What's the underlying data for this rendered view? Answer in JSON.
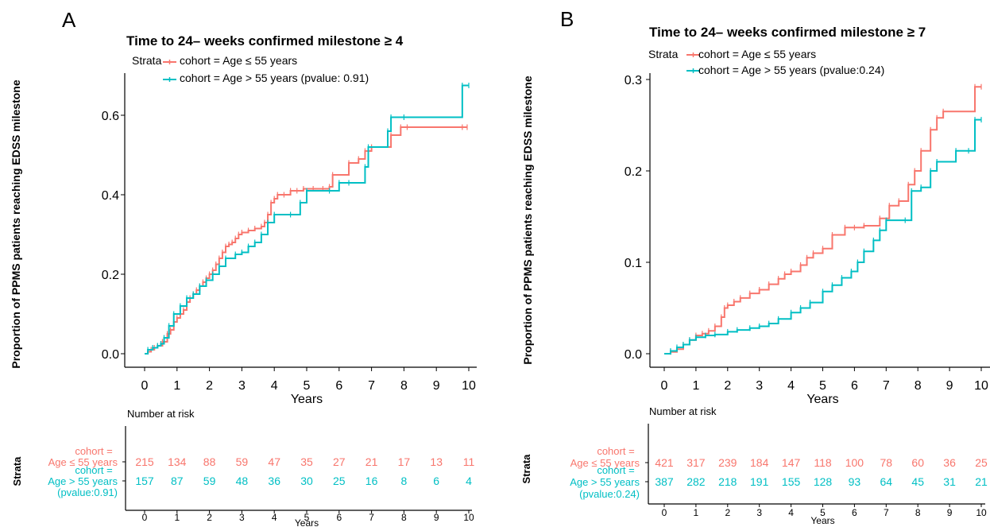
{
  "colors": {
    "age_le_55": "#F8766D",
    "age_gt_55": "#00BFC4"
  },
  "panels": [
    {
      "letter": "A",
      "title": "Time to 24– weeks confirmed milestone ≥ 4",
      "legend": {
        "strata_label": "Strata",
        "entries": [
          "cohort = Age ≤ 55 years",
          "cohort = Age > 55 years (pvalue: 0.91)"
        ]
      },
      "ylabel": "Proportion of PPMS patients reaching EDSS milestone",
      "xlabel": "Years",
      "y_ticks": [
        "0.0",
        "0.2",
        "0.4",
        "0.6"
      ],
      "x_ticks": [
        "0",
        "1",
        "2",
        "3",
        "4",
        "5",
        "6",
        "7",
        "8",
        "9",
        "10"
      ],
      "risk_table": {
        "title": "Number at risk",
        "strata_title": "Strata",
        "xlabel": "Years",
        "x_ticks": [
          "0",
          "1",
          "2",
          "3",
          "4",
          "5",
          "6",
          "7",
          "8",
          "9",
          "10"
        ],
        "rows": [
          {
            "label_lines": [
              "cohort =",
              "Age ≤ 55 years"
            ],
            "values": [
              "215",
              "134",
              "88",
              "59",
              "47",
              "35",
              "27",
              "21",
              "17",
              "13",
              "11"
            ]
          },
          {
            "label_lines": [
              "cohort =",
              "Age > 55 years",
              "(pvalue:0.91)"
            ],
            "values": [
              "157",
              "87",
              "59",
              "48",
              "36",
              "30",
              "25",
              "16",
              "8",
              "6",
              "4"
            ]
          }
        ]
      }
    },
    {
      "letter": "B",
      "title": "Time to 24– weeks confirmed milestone ≥ 7",
      "legend": {
        "strata_label": "Strata",
        "entries": [
          "cohort = Age ≤ 55 years",
          "cohort = Age > 55 years (pvalue:0.24)"
        ]
      },
      "ylabel": "Proportion of PPMS patients reaching EDSS milestone",
      "xlabel": "Years",
      "y_ticks": [
        "0.0",
        "0.1",
        "0.2",
        "0.3"
      ],
      "x_ticks": [
        "0",
        "1",
        "2",
        "3",
        "4",
        "5",
        "6",
        "7",
        "8",
        "9",
        "10"
      ],
      "risk_table": {
        "title": "Number at risk",
        "strata_title": "Strata",
        "xlabel": "Years",
        "x_ticks": [
          "0",
          "1",
          "2",
          "3",
          "4",
          "5",
          "6",
          "7",
          "8",
          "9",
          "10"
        ],
        "rows": [
          {
            "label_lines": [
              "cohort =",
              "Age ≤ 55 years"
            ],
            "values": [
              "421",
              "317",
              "239",
              "184",
              "147",
              "118",
              "100",
              "78",
              "60",
              "36",
              "25"
            ]
          },
          {
            "label_lines": [
              "cohort =",
              "Age > 55 years",
              "(pvalue:0.24)"
            ],
            "values": [
              "387",
              "282",
              "218",
              "191",
              "155",
              "128",
              "93",
              "64",
              "45",
              "31",
              "21"
            ]
          }
        ]
      }
    }
  ],
  "chart_data": [
    {
      "type": "line",
      "step": true,
      "title": "Time to 24– weeks confirmed milestone ≥ 4",
      "xlabel": "Years",
      "ylabel": "Proportion of PPMS patients reaching EDSS milestone",
      "xlim": [
        0,
        10
      ],
      "ylim": [
        0,
        0.68
      ],
      "legend_position": "top-left",
      "series": [
        {
          "name": "cohort = Age ≤ 55 years",
          "x": [
            0,
            0.1,
            0.2,
            0.3,
            0.4,
            0.55,
            0.7,
            0.8,
            0.9,
            1.0,
            1.1,
            1.2,
            1.3,
            1.4,
            1.5,
            1.6,
            1.7,
            1.8,
            1.9,
            2.0,
            2.1,
            2.2,
            2.3,
            2.4,
            2.5,
            2.6,
            2.7,
            2.8,
            2.9,
            3.0,
            3.2,
            3.4,
            3.6,
            3.7,
            3.8,
            3.9,
            4.0,
            4.1,
            4.3,
            4.5,
            4.7,
            4.9,
            5.2,
            5.5,
            5.7,
            5.8,
            6.3,
            6.6,
            6.8,
            7.0,
            7.6,
            7.9,
            8.1,
            9.8,
            9.95
          ],
          "y": [
            0,
            0.005,
            0.01,
            0.015,
            0.02,
            0.03,
            0.05,
            0.06,
            0.08,
            0.09,
            0.1,
            0.11,
            0.13,
            0.14,
            0.15,
            0.16,
            0.17,
            0.18,
            0.19,
            0.2,
            0.21,
            0.225,
            0.24,
            0.255,
            0.27,
            0.275,
            0.28,
            0.29,
            0.3,
            0.305,
            0.31,
            0.315,
            0.32,
            0.33,
            0.35,
            0.38,
            0.39,
            0.4,
            0.4,
            0.41,
            0.41,
            0.415,
            0.415,
            0.415,
            0.42,
            0.45,
            0.48,
            0.49,
            0.51,
            0.52,
            0.55,
            0.57,
            0.57,
            0.57,
            0.57
          ]
        },
        {
          "name": "cohort = Age > 55 years (pvalue: 0.91)",
          "x": [
            0,
            0.1,
            0.25,
            0.4,
            0.5,
            0.6,
            0.75,
            0.9,
            1.1,
            1.3,
            1.5,
            1.7,
            1.9,
            2.1,
            2.3,
            2.5,
            2.8,
            3.0,
            3.2,
            3.4,
            3.6,
            3.8,
            4.0,
            4.5,
            4.8,
            5.0,
            5.7,
            6.0,
            6.3,
            6.8,
            6.9,
            7.5,
            7.6,
            8.0,
            9.8,
            10.0
          ],
          "y": [
            0,
            0.01,
            0.015,
            0.02,
            0.025,
            0.04,
            0.07,
            0.1,
            0.12,
            0.14,
            0.15,
            0.17,
            0.185,
            0.2,
            0.22,
            0.24,
            0.25,
            0.255,
            0.27,
            0.28,
            0.3,
            0.33,
            0.35,
            0.35,
            0.38,
            0.41,
            0.41,
            0.43,
            0.43,
            0.47,
            0.52,
            0.56,
            0.595,
            0.595,
            0.675,
            0.675
          ]
        }
      ]
    },
    {
      "type": "line",
      "step": true,
      "title": "Time to 24– weeks confirmed milestone ≥ 7",
      "xlabel": "Years",
      "ylabel": "Proportion of PPMS patients reaching EDSS milestone",
      "xlim": [
        0,
        10
      ],
      "ylim": [
        0,
        0.3
      ],
      "legend_position": "top-left",
      "series": [
        {
          "name": "cohort = Age ≤ 55 years",
          "x": [
            0,
            0.2,
            0.4,
            0.6,
            0.8,
            1.0,
            1.2,
            1.4,
            1.6,
            1.8,
            1.9,
            2.0,
            2.2,
            2.4,
            2.7,
            3.0,
            3.3,
            3.6,
            3.8,
            4.0,
            4.3,
            4.5,
            4.7,
            5.0,
            5.3,
            5.7,
            6.0,
            6.3,
            6.8,
            7.1,
            7.4,
            7.7,
            7.9,
            8.1,
            8.4,
            8.6,
            8.8,
            9.8,
            10.0
          ],
          "y": [
            0,
            0.002,
            0.005,
            0.01,
            0.015,
            0.02,
            0.022,
            0.025,
            0.03,
            0.04,
            0.05,
            0.053,
            0.057,
            0.061,
            0.066,
            0.07,
            0.076,
            0.082,
            0.087,
            0.09,
            0.097,
            0.105,
            0.11,
            0.115,
            0.13,
            0.138,
            0.138,
            0.14,
            0.148,
            0.162,
            0.167,
            0.185,
            0.2,
            0.222,
            0.245,
            0.258,
            0.265,
            0.292,
            0.292
          ]
        },
        {
          "name": "cohort = Age > 55 years (pvalue:0.24)",
          "x": [
            0,
            0.2,
            0.4,
            0.6,
            0.8,
            1.0,
            1.3,
            1.6,
            2.0,
            2.3,
            2.7,
            3.0,
            3.3,
            3.6,
            4.0,
            4.3,
            4.6,
            5.0,
            5.3,
            5.6,
            5.9,
            6.1,
            6.3,
            6.6,
            6.8,
            7.0,
            7.6,
            7.8,
            8.1,
            8.4,
            8.6,
            9.2,
            9.6,
            9.8,
            10.0
          ],
          "y": [
            0,
            0.003,
            0.007,
            0.01,
            0.015,
            0.018,
            0.02,
            0.021,
            0.024,
            0.026,
            0.028,
            0.03,
            0.033,
            0.038,
            0.045,
            0.05,
            0.056,
            0.068,
            0.075,
            0.083,
            0.09,
            0.1,
            0.112,
            0.124,
            0.135,
            0.146,
            0.146,
            0.178,
            0.182,
            0.2,
            0.21,
            0.222,
            0.222,
            0.256,
            0.256
          ]
        }
      ]
    }
  ]
}
